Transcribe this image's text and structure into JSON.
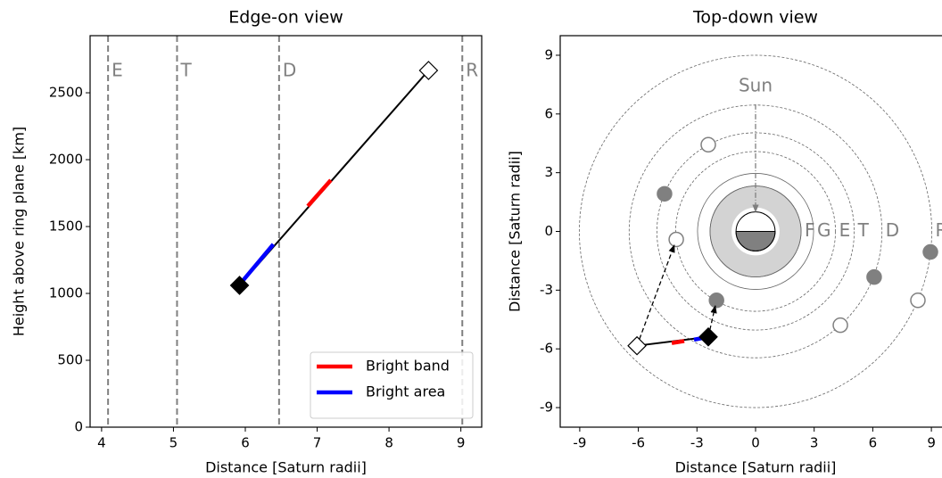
{
  "chart_data": [
    {
      "type": "line",
      "title": "Edge-on view",
      "x_label": "Distance [Saturn radii]",
      "y_label": "Height above ring plane [km]",
      "xlim": [
        3.84,
        9.29
      ],
      "ylim": [
        0,
        2927
      ],
      "xticks": [
        4,
        5,
        6,
        7,
        8,
        9
      ],
      "yticks": [
        0,
        500,
        1000,
        1500,
        2000,
        2500
      ],
      "vline_color": "#808080",
      "vlines": [
        {
          "label": "E",
          "x": 4.09
        },
        {
          "label": "T",
          "x": 5.05
        },
        {
          "label": "D",
          "x": 6.47
        },
        {
          "label": "R",
          "x": 9.02
        }
      ],
      "series": [
        {
          "color": "#000000",
          "x": [
            5.92,
            8.55
          ],
          "values": [
            1060,
            2667
          ]
        },
        {
          "name": "Bright band",
          "color": "#ff0000",
          "x": [
            6.87,
            7.19
          ],
          "values": [
            1653,
            1847
          ]
        },
        {
          "name": "Bright area",
          "color": "#0000ff",
          "x": [
            5.91,
            6.39
          ],
          "values": [
            1060,
            1367
          ]
        }
      ],
      "markers": [
        {
          "x": 5.92,
          "y": 1060,
          "fill": "#000000"
        },
        {
          "x": 8.55,
          "y": 2667,
          "fill": "#ffffff"
        }
      ],
      "legend": "lower right"
    },
    {
      "type": "line",
      "title": "Top-down view",
      "x_label": "Distance [Saturn radii]",
      "y_label": "Distance [Saturn radii]",
      "xlim": [
        -10,
        10
      ],
      "ylim": [
        -10,
        10
      ],
      "xticks": [
        -9,
        -6,
        -3,
        0,
        3,
        6,
        9
      ],
      "yticks": [
        -9,
        -6,
        -3,
        0,
        3,
        6,
        9
      ],
      "planet_radius": 1,
      "planet_shadow": "#808080",
      "ring_disk": {
        "outer": 2.33,
        "color": "#d3d3d3"
      },
      "rings": [
        {
          "label": "F",
          "radius": 2.33
        },
        {
          "label": "G",
          "radius": 2.97
        }
      ],
      "orbits": [
        {
          "label": "E",
          "radius": 4.09
        },
        {
          "label": "T",
          "radius": 5.05
        },
        {
          "label": "D",
          "radius": 6.47
        },
        {
          "label": "R",
          "radius": 9.02
        }
      ],
      "label_color": "#808080",
      "moons": [
        {
          "x": -4.06,
          "y": -0.41,
          "fill": "#ffffff"
        },
        {
          "x": -2.0,
          "y": -3.52,
          "fill": "#808080"
        },
        {
          "x": -4.66,
          "y": 1.92,
          "fill": "#808080"
        },
        {
          "x": -2.42,
          "y": 4.43,
          "fill": "#ffffff"
        },
        {
          "x": 6.07,
          "y": -2.33,
          "fill": "#808080"
        },
        {
          "x": 4.34,
          "y": -4.79,
          "fill": "#ffffff"
        },
        {
          "x": 8.31,
          "y": -3.52,
          "fill": "#ffffff"
        },
        {
          "x": 8.95,
          "y": -1.05,
          "fill": "#808080"
        }
      ],
      "series": [
        {
          "color": "#000000",
          "x": [
            -6.07,
            -2.42
          ],
          "values": [
            -5.84,
            -5.39
          ]
        },
        {
          "color": "#ff0000",
          "x": [
            -4.29,
            -3.65
          ],
          "values": [
            -5.7,
            -5.6
          ]
        },
        {
          "color": "#0000ff",
          "x": [
            -3.15,
            -2.42
          ],
          "values": [
            -5.53,
            -5.39
          ]
        }
      ],
      "markers": [
        {
          "x": -2.42,
          "y": -5.39,
          "fill": "#000000"
        },
        {
          "x": -6.07,
          "y": -5.84,
          "fill": "#ffffff"
        }
      ],
      "arrows": [
        {
          "from": [
            -6.07,
            -5.84
          ],
          "to": [
            -4.16,
            -0.7
          ]
        },
        {
          "from": [
            -2.42,
            -5.39
          ],
          "to": [
            -2.06,
            -3.8
          ]
        }
      ],
      "sun": {
        "label": "Sun",
        "x": 0,
        "y": 7.4,
        "arrow_from": [
          0,
          6.5
        ],
        "arrow_to": [
          0,
          1.0
        ]
      }
    }
  ]
}
